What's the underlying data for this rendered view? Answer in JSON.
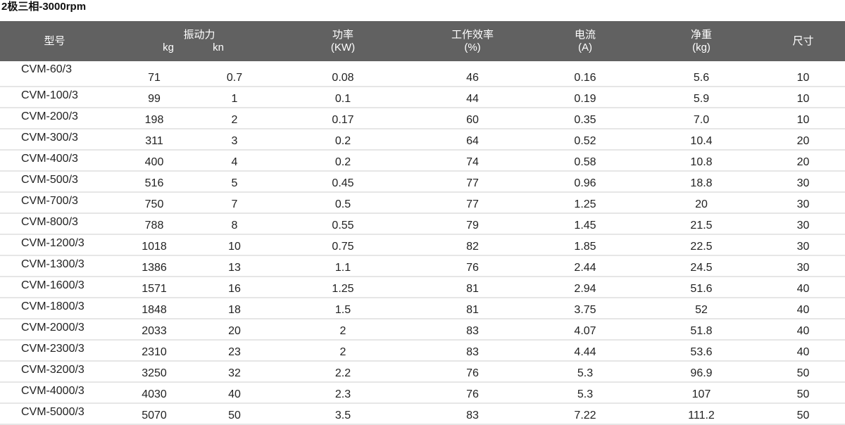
{
  "title": "2极三相-3000rpm",
  "headers": {
    "model": "型号",
    "force": "振动力",
    "force_kg": "kg",
    "force_kn": "kn",
    "power": "功率",
    "power_unit": "(KW)",
    "efficiency": "工作效率",
    "efficiency_unit": "(%)",
    "current": "电流",
    "current_unit": "(A)",
    "weight": "净重",
    "weight_unit": "(kg)",
    "size": "尺寸"
  },
  "rows": [
    {
      "model": "CVM-60/3",
      "kg": "71",
      "kn": "0.7",
      "power": "0.08",
      "efficiency": "46",
      "current": "0.16",
      "weight": "5.6",
      "size": "10"
    },
    {
      "model": "CVM-100/3",
      "kg": "99",
      "kn": "1",
      "power": "0.1",
      "efficiency": "44",
      "current": "0.19",
      "weight": "5.9",
      "size": "10"
    },
    {
      "model": "CVM-200/3",
      "kg": "198",
      "kn": "2",
      "power": "0.17",
      "efficiency": "60",
      "current": "0.35",
      "weight": "7.0",
      "size": "10"
    },
    {
      "model": "CVM-300/3",
      "kg": "311",
      "kn": "3",
      "power": "0.2",
      "efficiency": "64",
      "current": "0.52",
      "weight": "10.4",
      "size": "20"
    },
    {
      "model": "CVM-400/3",
      "kg": "400",
      "kn": "4",
      "power": "0.2",
      "efficiency": "74",
      "current": "0.58",
      "weight": "10.8",
      "size": "20"
    },
    {
      "model": "CVM-500/3",
      "kg": "516",
      "kn": "5",
      "power": "0.45",
      "efficiency": "77",
      "current": "0.96",
      "weight": "18.8",
      "size": "30"
    },
    {
      "model": "CVM-700/3",
      "kg": "750",
      "kn": "7",
      "power": "0.5",
      "efficiency": "77",
      "current": "1.25",
      "weight": "20",
      "size": "30"
    },
    {
      "model": "CVM-800/3",
      "kg": "788",
      "kn": "8",
      "power": "0.55",
      "efficiency": "79",
      "current": "1.45",
      "weight": "21.5",
      "size": "30"
    },
    {
      "model": "CVM-1200/3",
      "kg": "1018",
      "kn": "10",
      "power": "0.75",
      "efficiency": "82",
      "current": "1.85",
      "weight": "22.5",
      "size": "30"
    },
    {
      "model": "CVM-1300/3",
      "kg": "1386",
      "kn": "13",
      "power": "1.1",
      "efficiency": "76",
      "current": "2.44",
      "weight": "24.5",
      "size": "30"
    },
    {
      "model": "CVM-1600/3",
      "kg": "1571",
      "kn": "16",
      "power": "1.25",
      "efficiency": "81",
      "current": "2.94",
      "weight": "51.6",
      "size": "40"
    },
    {
      "model": "CVM-1800/3",
      "kg": "1848",
      "kn": "18",
      "power": "1.5",
      "efficiency": "81",
      "current": "3.75",
      "weight": "52",
      "size": "40"
    },
    {
      "model": "CVM-2000/3",
      "kg": "2033",
      "kn": "20",
      "power": "2",
      "efficiency": "83",
      "current": "4.07",
      "weight": "51.8",
      "size": "40"
    },
    {
      "model": "CVM-2300/3",
      "kg": "2310",
      "kn": "23",
      "power": "2",
      "efficiency": "83",
      "current": "4.44",
      "weight": "53.6",
      "size": "40"
    },
    {
      "model": "CVM-3200/3",
      "kg": "3250",
      "kn": "32",
      "power": "2.2",
      "efficiency": "76",
      "current": "5.3",
      "weight": "96.9",
      "size": "50"
    },
    {
      "model": "CVM-4000/3",
      "kg": "4030",
      "kn": "40",
      "power": "2.3",
      "efficiency": "76",
      "current": "5.3",
      "weight": "107",
      "size": "50"
    },
    {
      "model": "CVM-5000/3",
      "kg": "5070",
      "kn": "50",
      "power": "3.5",
      "efficiency": "83",
      "current": "7.22",
      "weight": "111.2",
      "size": "50"
    }
  ]
}
